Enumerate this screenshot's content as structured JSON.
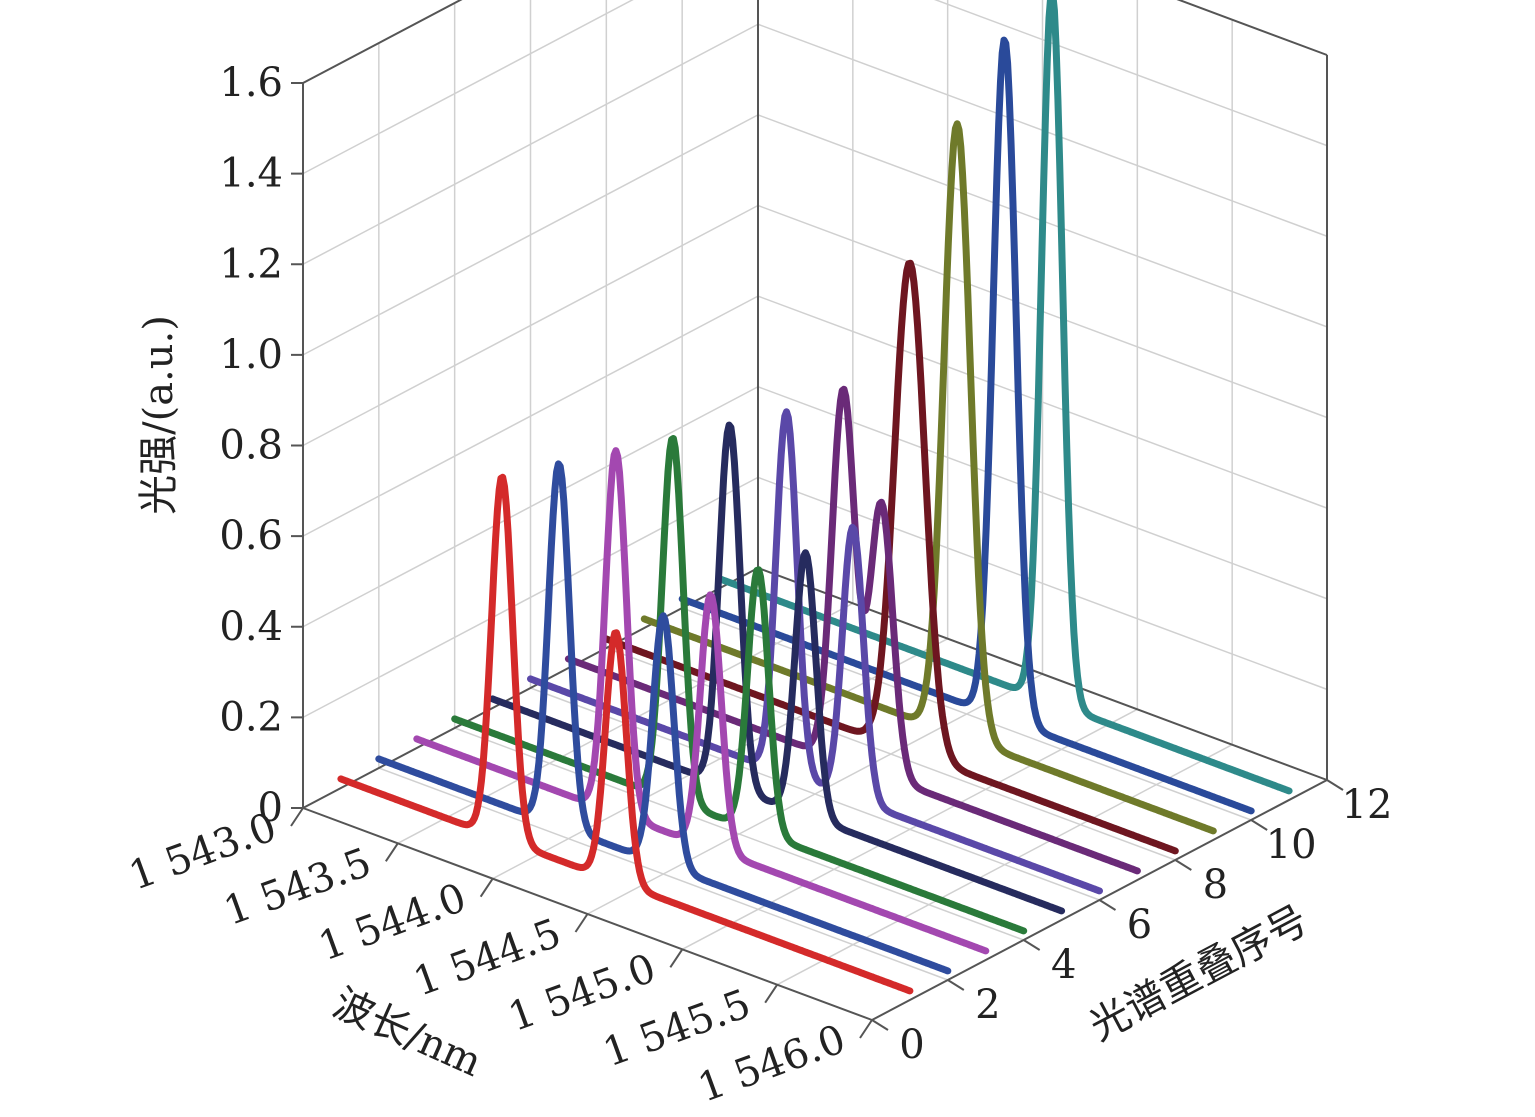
{
  "chart_data": {
    "type": "line",
    "projection": "3d-waterfall",
    "xlabel": "波长/nm",
    "ylabel": "光谱重叠序号",
    "zlabel": "光强/(a.u.)",
    "x_ticks": [
      "1 543.0",
      "1 543.5",
      "1 544.0",
      "1 544.5",
      "1 545.0",
      "1 545.5",
      "1 546.0"
    ],
    "x_values": [
      1543.0,
      1543.5,
      1544.0,
      1544.5,
      1545.0,
      1545.5,
      1546.0
    ],
    "xlim": [
      1543.0,
      1546.0
    ],
    "y_ticks": [
      "0",
      "2",
      "4",
      "6",
      "8",
      "10",
      "12"
    ],
    "y_values": [
      0,
      2,
      4,
      6,
      8,
      10,
      12
    ],
    "ylim": [
      0,
      12
    ],
    "z_ticks": [
      "0",
      "0.2",
      "0.4",
      "0.6",
      "0.8",
      "1.0",
      "1.2",
      "1.4",
      "1.6"
    ],
    "z_values": [
      0,
      0.2,
      0.4,
      0.6,
      0.8,
      1.0,
      1.2,
      1.4,
      1.6
    ],
    "zlim": [
      0,
      1.6
    ],
    "grid": true,
    "series": [
      {
        "index": 1,
        "color": "#d42a2a",
        "peaks": [
          {
            "center": 1543.85,
            "height": 0.8,
            "sigma": 0.055
          },
          {
            "center": 1544.45,
            "height": 0.55,
            "sigma": 0.055
          }
        ]
      },
      {
        "index": 2,
        "color": "#2f4c9e",
        "peaks": [
          {
            "center": 1543.95,
            "height": 0.8,
            "sigma": 0.055
          },
          {
            "center": 1544.5,
            "height": 0.55,
            "sigma": 0.055
          }
        ]
      },
      {
        "index": 3,
        "color": "#a348b0",
        "peaks": [
          {
            "center": 1544.05,
            "height": 0.8,
            "sigma": 0.055
          },
          {
            "center": 1544.55,
            "height": 0.56,
            "sigma": 0.055
          }
        ]
      },
      {
        "index": 4,
        "color": "#2a7a3a",
        "peaks": [
          {
            "center": 1544.15,
            "height": 0.8,
            "sigma": 0.055
          },
          {
            "center": 1544.6,
            "height": 0.58,
            "sigma": 0.055
          }
        ]
      },
      {
        "index": 5,
        "color": "#262b5e",
        "peaks": [
          {
            "center": 1544.25,
            "height": 0.8,
            "sigma": 0.055
          },
          {
            "center": 1544.65,
            "height": 0.58,
            "sigma": 0.055
          }
        ]
      },
      {
        "index": 6,
        "color": "#5a48a8",
        "peaks": [
          {
            "center": 1544.35,
            "height": 0.8,
            "sigma": 0.055
          },
          {
            "center": 1544.7,
            "height": 0.6,
            "sigma": 0.055
          }
        ]
      },
      {
        "index": 7,
        "color": "#6a2a78",
        "peaks": [
          {
            "center": 1544.45,
            "height": 0.82,
            "sigma": 0.06
          },
          {
            "center": 1544.65,
            "height": 0.6,
            "sigma": 0.06
          }
        ]
      },
      {
        "index": 8,
        "color": "#6e1620",
        "peaks": [
          {
            "center": 1544.6,
            "height": 1.08,
            "sigma": 0.08
          }
        ]
      },
      {
        "index": 9,
        "color": "#6f7a2a",
        "peaks": [
          {
            "center": 1544.65,
            "height": 1.35,
            "sigma": 0.07
          }
        ]
      },
      {
        "index": 10,
        "color": "#2a4a9a",
        "peaks": [
          {
            "center": 1544.7,
            "height": 1.5,
            "sigma": 0.06
          }
        ]
      },
      {
        "index": 11,
        "color": "#2e8a8a",
        "peaks": [
          {
            "center": 1544.75,
            "height": 1.57,
            "sigma": 0.055
          }
        ]
      }
    ]
  }
}
